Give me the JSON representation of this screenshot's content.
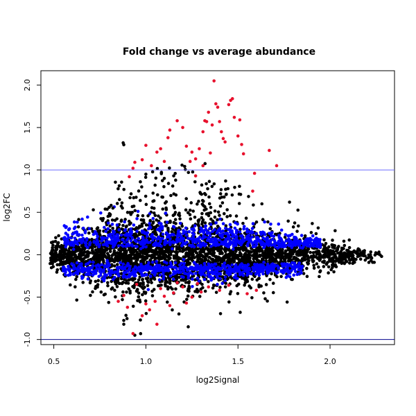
{
  "chart_data": {
    "type": "scatter",
    "title": "Fold change vs average abundance",
    "xlabel": "log2Signal",
    "ylabel": "log2FC",
    "xlim": [
      0.43,
      2.35
    ],
    "ylim": [
      -1.06,
      2.17
    ],
    "x_ticks": [
      0.5,
      1.0,
      1.5,
      2.0
    ],
    "x_tick_labels": [
      "0.5",
      "1.0",
      "1.5",
      "2.0"
    ],
    "y_ticks": [
      -1.0,
      -0.5,
      0.0,
      0.5,
      1.0,
      1.5,
      2.0
    ],
    "y_tick_labels": [
      "-1.0",
      "-0.5",
      "0.0",
      "0.5",
      "1.0",
      "1.5",
      "2.0"
    ],
    "grid": false,
    "legend": "none",
    "reference_lines": [
      {
        "y": 1.0,
        "color": "#6b6bff"
      },
      {
        "y": -1.0,
        "color": "#00008b"
      }
    ],
    "colors": {
      "all_features": "#000000",
      "significant": "#0000ff",
      "highlighted": "#e8112d"
    },
    "point_cloud": {
      "description": "dense cloud of several thousand features centered on log2FC 0, widest near log2Signal 0.9-1.2, narrowing toward 2.3",
      "x_range": [
        0.48,
        2.28
      ],
      "y_center": 0.0
    },
    "highlighted_points": [
      [
        0.91,
        0.92
      ],
      [
        0.93,
        1.02
      ],
      [
        0.94,
        1.09
      ],
      [
        0.98,
        1.12
      ],
      [
        1.0,
        1.29
      ],
      [
        1.03,
        1.05
      ],
      [
        1.06,
        1.21
      ],
      [
        1.08,
        1.25
      ],
      [
        1.1,
        1.1
      ],
      [
        1.12,
        1.38
      ],
      [
        1.13,
        1.47
      ],
      [
        1.17,
        1.58
      ],
      [
        1.2,
        1.5
      ],
      [
        1.22,
        1.28
      ],
      [
        1.24,
        1.1
      ],
      [
        1.25,
        1.21
      ],
      [
        1.27,
        1.13
      ],
      [
        1.29,
        1.25
      ],
      [
        1.31,
        1.45
      ],
      [
        1.32,
        1.58
      ],
      [
        1.33,
        1.57
      ],
      [
        1.34,
        1.68
      ],
      [
        1.36,
        1.53
      ],
      [
        1.37,
        2.05
      ],
      [
        1.38,
        1.78
      ],
      [
        1.39,
        1.74
      ],
      [
        1.4,
        1.57
      ],
      [
        1.41,
        1.45
      ],
      [
        1.42,
        1.37
      ],
      [
        1.43,
        1.33
      ],
      [
        1.45,
        1.77
      ],
      [
        1.46,
        1.82
      ],
      [
        1.47,
        1.84
      ],
      [
        1.48,
        1.62
      ],
      [
        1.5,
        1.4
      ],
      [
        1.51,
        1.59
      ],
      [
        1.52,
        1.3
      ],
      [
        1.53,
        1.19
      ],
      [
        1.58,
        0.75
      ],
      [
        1.59,
        0.96
      ],
      [
        1.67,
        1.23
      ],
      [
        1.71,
        1.05
      ],
      [
        1.35,
        1.2
      ],
      [
        1.31,
        1.05
      ],
      [
        1.27,
        0.93
      ],
      [
        0.98,
        -0.72
      ],
      [
        1.0,
        -0.58
      ],
      [
        1.02,
        -0.65
      ],
      [
        1.05,
        -0.55
      ],
      [
        1.1,
        -0.49
      ],
      [
        1.15,
        -0.45
      ],
      [
        1.2,
        -0.38
      ],
      [
        1.25,
        -0.5
      ],
      [
        1.3,
        -0.44
      ],
      [
        1.34,
        -0.38
      ],
      [
        1.4,
        -0.42
      ],
      [
        1.45,
        -0.36
      ],
      [
        0.93,
        -0.93
      ],
      [
        1.06,
        -0.82
      ],
      [
        0.88,
        -0.48
      ],
      [
        0.95,
        -0.35
      ],
      [
        1.13,
        -0.6
      ],
      [
        1.22,
        -0.57
      ],
      [
        0.85,
        -0.55
      ],
      [
        1.08,
        -0.4
      ],
      [
        1.55,
        -0.46
      ],
      [
        1.6,
        -0.42
      ],
      [
        1.28,
        -0.34
      ],
      [
        1.17,
        -0.33
      ],
      [
        0.9,
        -0.62
      ]
    ],
    "significant_upper_band": {
      "x_range": [
        0.55,
        1.95
      ],
      "y_center": 0.1
    },
    "significant_lower_band": {
      "x_range": [
        0.55,
        1.85
      ],
      "y_center": -0.13
    },
    "outlier_points": [
      [
        0.88,
        -0.82
      ],
      [
        0.94,
        -0.95
      ],
      [
        1.23,
        -0.85
      ],
      [
        1.64,
        -0.45
      ],
      [
        1.78,
        0.62
      ],
      [
        1.1,
        0.9
      ],
      [
        1.0,
        0.95
      ],
      [
        0.97,
        0.86
      ],
      [
        1.05,
        0.82
      ],
      [
        1.63,
        0.6
      ],
      [
        2.28,
        -0.02
      ],
      [
        2.24,
        -0.09
      ],
      [
        2.2,
        -0.04
      ],
      [
        0.49,
        0.0
      ]
    ]
  }
}
